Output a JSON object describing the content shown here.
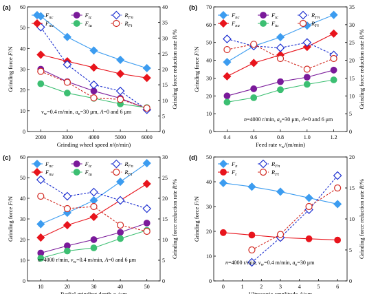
{
  "colors": {
    "Fnc": "#3c9cf0",
    "Ftc": "#7a1a9a",
    "Fnu": "#e8141c",
    "Ftu": "#3cbf72",
    "RFn": "#1c2fd0",
    "RFt": "#d22a22"
  },
  "chart_data": [
    {
      "panel": "(a)",
      "type": "line",
      "xlabel": "Grinding wheel speed n/(r/min)",
      "ylabel_left": "Grinding force F/N",
      "ylabel_right": "Grinding force reduction rate R/%",
      "x": [
        2000,
        3000,
        4000,
        5000,
        6000
      ],
      "xticks": [
        "2000",
        "3000",
        "4000",
        "5000",
        "6000"
      ],
      "ylim_left": [
        0,
        60
      ],
      "yticks_left": [
        "0",
        "10",
        "20",
        "30",
        "40",
        "50",
        "60"
      ],
      "ylim_right": [
        0,
        40
      ],
      "yticks_right": [
        "0",
        "5",
        "10",
        "15",
        "20",
        "25",
        "30",
        "35",
        "40"
      ],
      "legend": {
        "Fnc": "Fnc",
        "Fnu": "Fnu",
        "Ftc": "Ftc",
        "Ftu": "Ftu",
        "RFn": "RFn",
        "RFt": "RFt"
      },
      "series": [
        {
          "key": "Fnc",
          "axis": "left",
          "marker": "diamond",
          "filled": true,
          "dashed": false,
          "values": [
            55.5,
            45.5,
            39,
            34.5,
            30.5
          ]
        },
        {
          "key": "Fnu",
          "axis": "left",
          "marker": "diamond",
          "filled": true,
          "dashed": false,
          "values": [
            37,
            33.8,
            30.8,
            27.8,
            25.8
          ]
        },
        {
          "key": "Ftc",
          "axis": "left",
          "marker": "circle",
          "filled": true,
          "dashed": false,
          "values": [
            30,
            24,
            19.5,
            16,
            11
          ]
        },
        {
          "key": "Ftu",
          "axis": "left",
          "marker": "circle",
          "filled": true,
          "dashed": false,
          "values": [
            23,
            18.5,
            16,
            13.3,
            11.5
          ]
        },
        {
          "key": "RFn",
          "axis": "right",
          "marker": "diamond",
          "filled": false,
          "dashed": true,
          "values": [
            33.5,
            21.5,
            15,
            13,
            7
          ]
        },
        {
          "key": "RFt",
          "axis": "right",
          "marker": "circle",
          "filled": false,
          "dashed": true,
          "values": [
            19.3,
            15.8,
            10.8,
            10.3,
            7.5
          ]
        }
      ],
      "annotation": "vw=0.4 m/min, ae=30 μm, A=0 and 6 μm"
    },
    {
      "panel": "(b)",
      "type": "line",
      "xlabel": "Feed rate vw/(m/min)",
      "ylabel_left": "Grinding force F/N",
      "ylabel_right": "Grinding force reduction rate R/%",
      "x": [
        0.4,
        0.6,
        0.8,
        1.0,
        1.2
      ],
      "xticks": [
        "0.4",
        "0.6",
        "0.8",
        "1.0",
        "1.2"
      ],
      "ylim_left": [
        0,
        70
      ],
      "yticks_left": [
        "0",
        "10",
        "20",
        "30",
        "40",
        "50",
        "60",
        "70"
      ],
      "ylim_right": [
        0,
        35
      ],
      "yticks_right": [
        "0",
        "5",
        "10",
        "15",
        "20",
        "25",
        "30",
        "35"
      ],
      "legend": {
        "Fnc": "Fnc",
        "Fnu": "Fnu",
        "Ftc": "Ftc",
        "Ftu": "Ftu",
        "RFn": "RFn",
        "RFt": "RFt"
      },
      "series": [
        {
          "key": "Fnc",
          "axis": "left",
          "marker": "diamond",
          "filled": true,
          "dashed": false,
          "values": [
            39,
            48,
            53,
            59.5,
            65.5
          ]
        },
        {
          "key": "Fnu",
          "axis": "left",
          "marker": "diamond",
          "filled": true,
          "dashed": false,
          "values": [
            31,
            38.5,
            43,
            47.5,
            55
          ]
        },
        {
          "key": "Ftc",
          "axis": "left",
          "marker": "circle",
          "filled": true,
          "dashed": false,
          "values": [
            20,
            24,
            28,
            30.5,
            34.5
          ]
        },
        {
          "key": "Ftu",
          "axis": "left",
          "marker": "circle",
          "filled": true,
          "dashed": false,
          "values": [
            16.5,
            19,
            23.5,
            26.5,
            29
          ]
        },
        {
          "key": "RFn",
          "axis": "right",
          "marker": "diamond",
          "filled": false,
          "dashed": true,
          "values": [
            26,
            24,
            23.5,
            25,
            21.5
          ]
        },
        {
          "key": "RFt",
          "axis": "right",
          "marker": "circle",
          "filled": false,
          "dashed": true,
          "values": [
            23,
            24.5,
            20.5,
            17.5,
            20.5
          ]
        }
      ],
      "annotation": "n=4000 r/min, ae=30 μm, A=0 and 6 μm"
    },
    {
      "panel": "(c)",
      "type": "line",
      "xlabel": "Radial grinding depth ae/μm",
      "ylabel_left": "Grinding force F/N",
      "ylabel_right": "Grinding force reduction rate R/%",
      "x": [
        10,
        20,
        30,
        40,
        50
      ],
      "xticks": [
        "10",
        "20",
        "30",
        "40",
        "50"
      ],
      "ylim_left": [
        0,
        60
      ],
      "yticks_left": [
        "0",
        "10",
        "20",
        "30",
        "40",
        "50",
        "60"
      ],
      "ylim_right": [
        0,
        30
      ],
      "yticks_right": [
        "0",
        "5",
        "10",
        "15",
        "20",
        "25",
        "30"
      ],
      "legend": {
        "Fnc": "Fnc",
        "Fnu": "Fnu",
        "Ftc": "Ftc",
        "Ftu": "Ftu",
        "RFn": "RFn",
        "RFt": "RFt"
      },
      "series": [
        {
          "key": "Fnc",
          "axis": "left",
          "marker": "diamond",
          "filled": true,
          "dashed": false,
          "values": [
            27.5,
            33,
            39,
            48,
            57
          ]
        },
        {
          "key": "Fnu",
          "axis": "left",
          "marker": "diamond",
          "filled": true,
          "dashed": false,
          "values": [
            21,
            27,
            31,
            39,
            47
          ]
        },
        {
          "key": "Ftc",
          "axis": "left",
          "marker": "circle",
          "filled": true,
          "dashed": false,
          "values": [
            13.5,
            17,
            20,
            23.5,
            28
          ]
        },
        {
          "key": "Ftu",
          "axis": "left",
          "marker": "circle",
          "filled": true,
          "dashed": false,
          "values": [
            11,
            14.5,
            16,
            20.5,
            24.5
          ]
        },
        {
          "key": "RFn",
          "axis": "right",
          "marker": "diamond",
          "filled": false,
          "dashed": true,
          "values": [
            24.5,
            20.5,
            21.5,
            19.5,
            17.5
          ]
        },
        {
          "key": "RFt",
          "axis": "right",
          "marker": "circle",
          "filled": false,
          "dashed": true,
          "values": [
            20.5,
            17.5,
            18,
            13.5,
            12
          ]
        }
      ],
      "annotation": "n=4000 r/min, vw=0.4 m/min, A=0 and 6 μm"
    },
    {
      "panel": "(d)",
      "type": "line",
      "xlabel": "Ultrasonic amplitude A/μm",
      "ylabel_left": "Grinding force F/N",
      "ylabel_right": "Grinding force reduction rate R/%",
      "x": [
        0,
        1.5,
        3,
        4.5,
        6
      ],
      "xticks": [
        "0",
        "1",
        "2",
        "3",
        "4",
        "5",
        "6"
      ],
      "xtick_values": [
        0,
        1,
        2,
        3,
        4,
        5,
        6
      ],
      "xlim": [
        -0.5,
        6.5
      ],
      "ylim_left": [
        0,
        50
      ],
      "yticks_left": [
        "0",
        "10",
        "20",
        "30",
        "40",
        "50"
      ],
      "ylim_right": [
        0,
        20
      ],
      "yticks_right": [
        "0",
        "5",
        "10",
        "15",
        "20"
      ],
      "legend": {
        "Fn": "Fn",
        "Ft": "Ft",
        "RFn": "RFn",
        "RFt": "RFt"
      },
      "series": [
        {
          "key": "Fn",
          "color": "Fnc",
          "axis": "left",
          "marker": "diamond",
          "filled": true,
          "dashed": false,
          "x": [
            0,
            1.5,
            3,
            4.5,
            6
          ],
          "values": [
            39.5,
            38,
            36,
            33.5,
            31
          ]
        },
        {
          "key": "Ft",
          "color": "Fnu",
          "axis": "left",
          "marker": "circle",
          "filled": true,
          "dashed": false,
          "x": [
            0,
            1.5,
            3,
            4.5,
            6
          ],
          "values": [
            19.5,
            18.5,
            17.5,
            17,
            16.5
          ]
        },
        {
          "key": "RFn",
          "axis": "right",
          "marker": "diamond",
          "filled": false,
          "dashed": true,
          "x": [
            1.5,
            3,
            4.5,
            6
          ],
          "values": [
            3,
            7,
            11.5,
            17
          ]
        },
        {
          "key": "RFt",
          "axis": "right",
          "marker": "circle",
          "filled": false,
          "dashed": true,
          "x": [
            1.5,
            3,
            4.5,
            6
          ],
          "values": [
            5,
            7.5,
            12,
            15
          ]
        }
      ],
      "annotation": "n=4000 r/min, vw=0.4 m/min, ae=30 μm"
    }
  ]
}
